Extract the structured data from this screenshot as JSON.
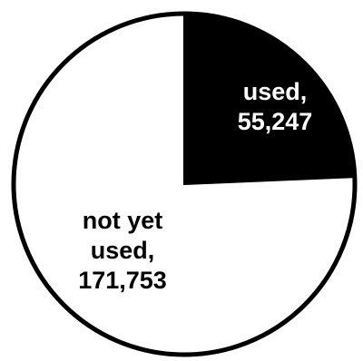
{
  "chart_data": {
    "type": "pie",
    "slices": [
      {
        "label_lines": [
          "used,",
          "55,247"
        ],
        "value": 55247,
        "color": "#000000",
        "label_color": "#ffffff"
      },
      {
        "label_lines": [
          "not yet",
          "used,",
          "171,753"
        ],
        "value": 171753,
        "color": "#ffffff",
        "label_color": "#000000"
      }
    ],
    "start_angle": "12 o'clock",
    "direction": "clockwise",
    "outline_color": "#000000",
    "legend": "none"
  }
}
